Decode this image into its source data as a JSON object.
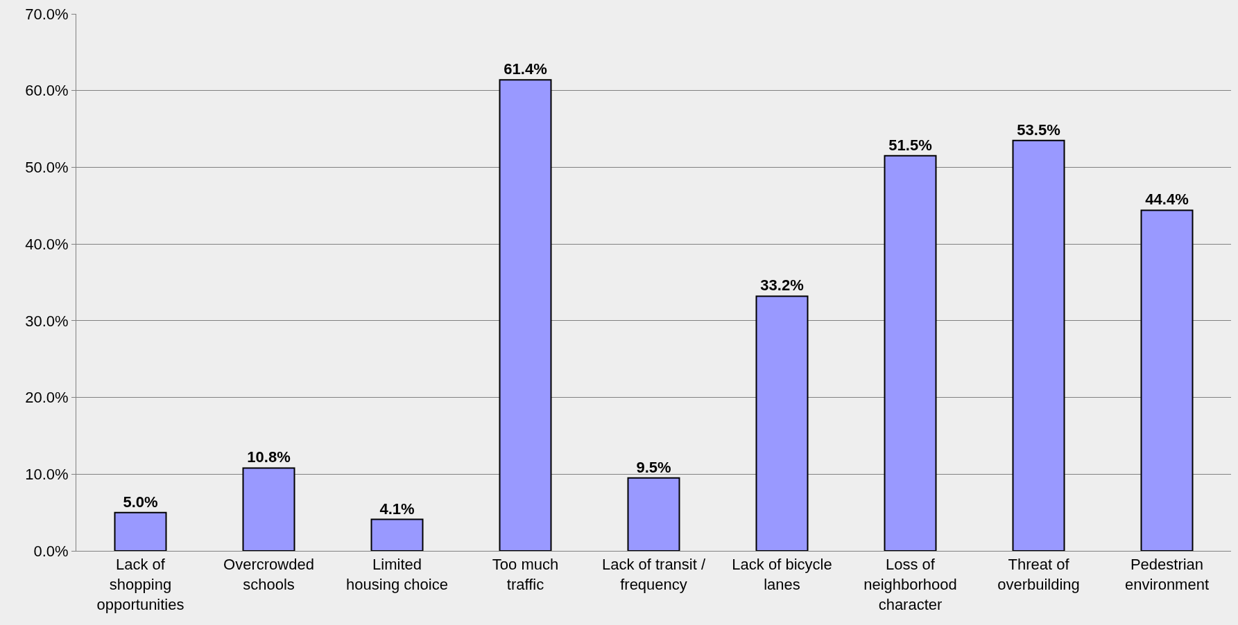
{
  "chart_data": {
    "type": "bar",
    "categories": [
      "Lack of\nshopping\nopportunities",
      "Overcrowded\nschools",
      "Limited\nhousing choice",
      "Too much\ntraffic",
      "Lack of transit /\nfrequency",
      "Lack of bicycle\nlanes",
      "Loss of\nneighborhood\ncharacter",
      "Threat of\noverbuilding",
      "Pedestrian\nenvironment"
    ],
    "values": [
      5.0,
      10.8,
      4.1,
      61.4,
      9.5,
      33.2,
      51.5,
      53.5,
      44.4
    ],
    "color": "#9999ff",
    "ylim": [
      0,
      70
    ],
    "yticks": [
      {
        "value": 0,
        "label": "0.0%"
      },
      {
        "value": 10,
        "label": "10.0%"
      },
      {
        "value": 20,
        "label": "20.0%"
      },
      {
        "value": 30,
        "label": "30.0%"
      },
      {
        "value": 40,
        "label": "40.0%"
      },
      {
        "value": 50,
        "label": "50.0%"
      },
      {
        "value": 60,
        "label": "60.0%"
      },
      {
        "value": 70,
        "label": "70.0%"
      }
    ],
    "value_labels": [
      "5.0%",
      "10.8%",
      "4.1%",
      "61.4%",
      "9.5%",
      "33.2%",
      "51.5%",
      "53.5%",
      "44.4%"
    ],
    "grid": "y",
    "legend": false
  }
}
